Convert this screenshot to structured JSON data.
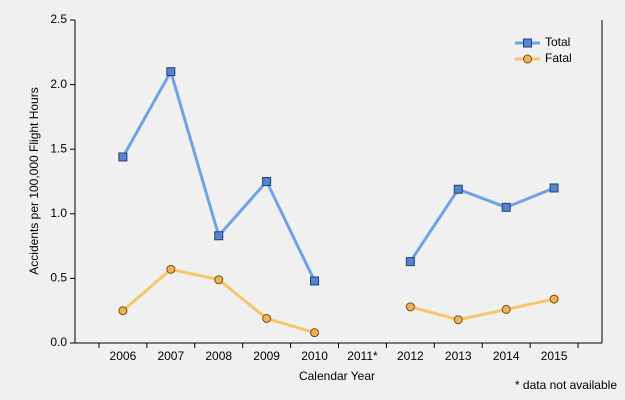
{
  "chart_data": {
    "type": "line",
    "categories": [
      "2006",
      "2007",
      "2008",
      "2009",
      "2010",
      "2011*",
      "2012",
      "2013",
      "2014",
      "2015"
    ],
    "series": [
      {
        "name": "Total",
        "color": "#6ea3e6",
        "marker_color": "#4f86d6",
        "marker": "square",
        "values": [
          1.44,
          2.1,
          0.83,
          1.25,
          0.48,
          null,
          0.63,
          1.19,
          1.05,
          1.2
        ]
      },
      {
        "name": "Fatal",
        "color": "#f7c56e",
        "marker_color": "#f2b24f",
        "marker": "circle",
        "values": [
          0.25,
          0.57,
          0.49,
          0.19,
          0.08,
          null,
          0.28,
          0.18,
          0.26,
          0.34
        ]
      }
    ],
    "xlabel": "Calendar Year",
    "ylabel": "Accidents per 100,000 Flight Hours",
    "annotation": "* data not available",
    "ylim": [
      0,
      2.5
    ],
    "yticks": [
      {
        "value": 0,
        "label": "0.0"
      },
      0.5,
      {
        "value": 1,
        "label": "1.0"
      },
      1.5,
      {
        "value": 2,
        "label": "2.0"
      },
      2.5
    ],
    "legend": "upper right",
    "grid": false
  }
}
